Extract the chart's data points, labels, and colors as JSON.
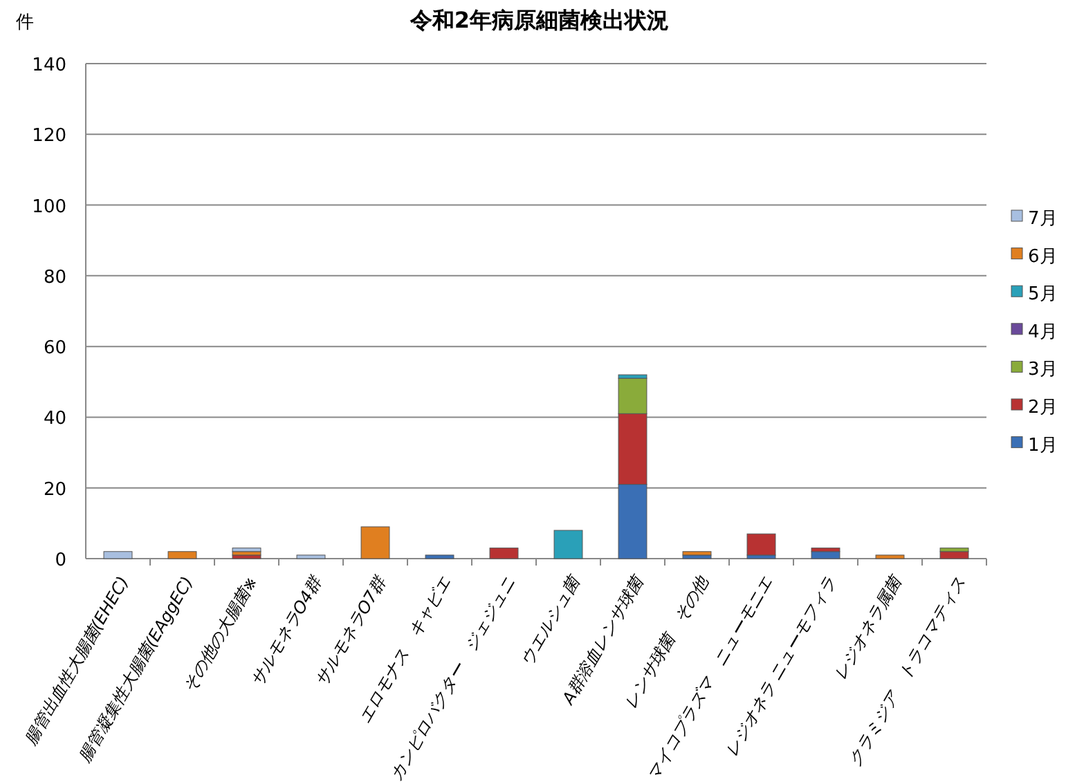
{
  "chart_data": {
    "type": "bar",
    "title": "令和2年病原細菌検出状況",
    "ylabel": "件",
    "stacked": true,
    "grid": "y",
    "legend": "right",
    "categories": [
      "腸管出血性大腸菌(EHEC)",
      "腸管凝集性大腸菌(EAggEC)",
      "その他の大腸菌※",
      "サルモネラO4群",
      "サルモネラO7群",
      "エロモナス　キャビエ",
      "カンピロバクター　ジェジュニ",
      "ウエルシュ菌",
      "A群溶血レンサ球菌",
      "レンサ球菌　その他",
      "マイコプラズマ　ニューモニエ",
      "レジオネラ ニューモフィラ",
      "レジオネラ属菌",
      "クラミジア　トラコマティス"
    ],
    "ylim": [
      0,
      140
    ],
    "yticks": [
      0,
      20,
      40,
      60,
      80,
      100,
      120,
      140
    ],
    "series": [
      {
        "name": "1月",
        "color": "#3a6fb5",
        "values": [
          0,
          0,
          0,
          0,
          0,
          1,
          0,
          0,
          21,
          1,
          1,
          2,
          0,
          0
        ]
      },
      {
        "name": "2月",
        "color": "#b83232",
        "values": [
          0,
          0,
          1,
          0,
          0,
          0,
          3,
          0,
          20,
          0,
          6,
          1,
          0,
          2
        ]
      },
      {
        "name": "3月",
        "color": "#8aab3a",
        "values": [
          0,
          0,
          0,
          0,
          0,
          0,
          0,
          0,
          10,
          0,
          0,
          0,
          0,
          1
        ]
      },
      {
        "name": "4月",
        "color": "#6a4a9a",
        "values": [
          0,
          0,
          0,
          0,
          0,
          0,
          0,
          0,
          0,
          0,
          0,
          0,
          0,
          0
        ]
      },
      {
        "name": "5月",
        "color": "#2aa0b8",
        "values": [
          0,
          0,
          0,
          0,
          0,
          0,
          0,
          8,
          1,
          0,
          0,
          0,
          0,
          0
        ]
      },
      {
        "name": "6月",
        "color": "#e07f20",
        "values": [
          0,
          2,
          1,
          0,
          9,
          0,
          0,
          0,
          0,
          1,
          0,
          0,
          1,
          0
        ]
      },
      {
        "name": "7月",
        "color": "#a8bfe0",
        "values": [
          2,
          0,
          1,
          1,
          0,
          0,
          0,
          0,
          0,
          0,
          0,
          0,
          0,
          0
        ]
      }
    ]
  }
}
